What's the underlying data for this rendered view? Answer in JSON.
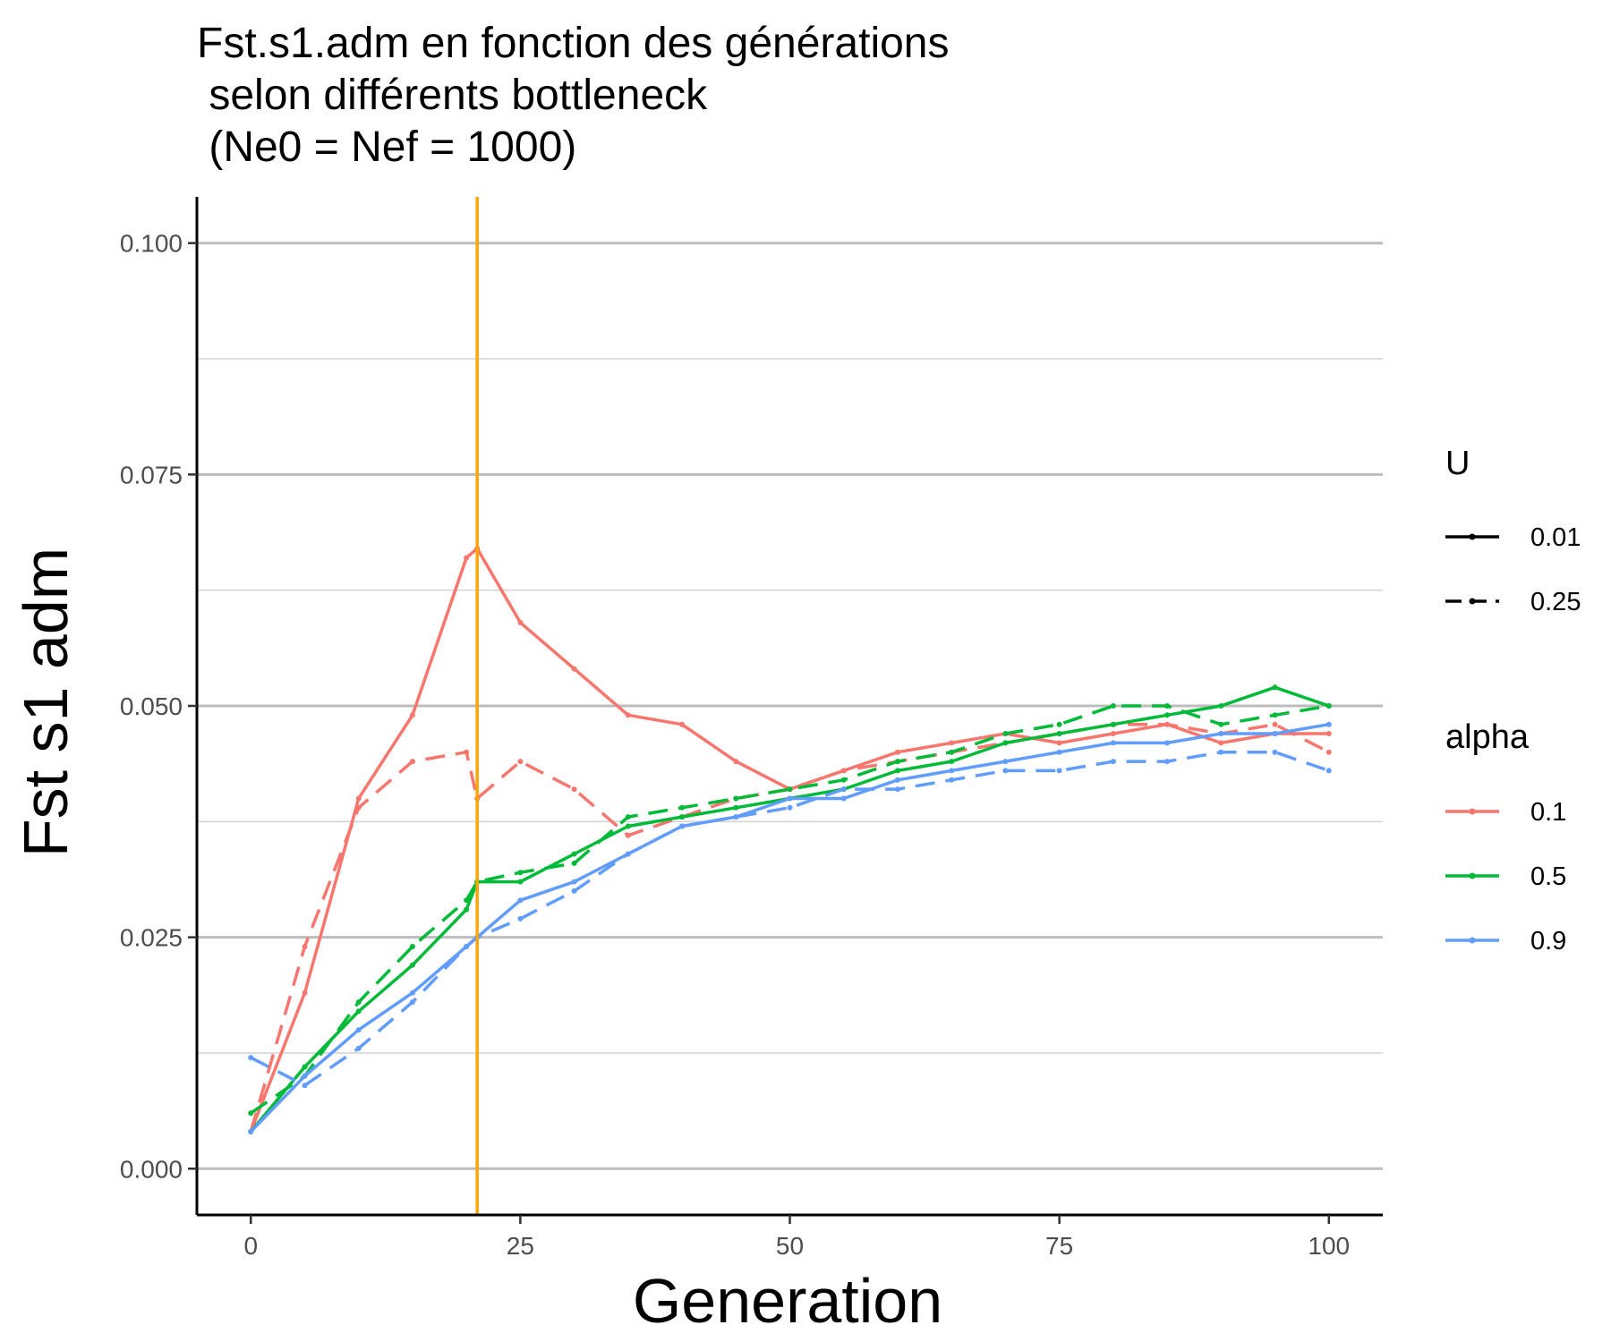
{
  "chart_data": {
    "type": "line",
    "title_lines": [
      "Fst.s1.adm en fonction des générations",
      " selon différents bottleneck",
      " (Ne0 = Nef = 1000)"
    ],
    "xlabel": "Generation",
    "ylabel": "Fst s1 adm",
    "xlim": [
      -5,
      105
    ],
    "ylim": [
      -0.005,
      0.105
    ],
    "x_ticks": [
      0,
      25,
      50,
      75,
      100
    ],
    "x_tick_labels": [
      "0",
      "25",
      "50",
      "75",
      "100"
    ],
    "y_ticks": [
      0.0,
      0.025,
      0.05,
      0.075,
      0.1
    ],
    "y_tick_labels": [
      "0.000",
      "0.025",
      "0.050",
      "0.075",
      "0.100"
    ],
    "y_minor_ticks": [
      0.0125,
      0.0375,
      0.0625,
      0.0875
    ],
    "grid": "horizontal",
    "vline": {
      "x": 21,
      "color": "#FFA500"
    },
    "legend": {
      "placement": "right",
      "linetype": {
        "title": "U",
        "entries": [
          "0.01",
          "0.25"
        ]
      },
      "color": {
        "title": "alpha",
        "entries": [
          "0.1",
          "0.5",
          "0.9"
        ],
        "colors": [
          "#F8766D",
          "#00BA38",
          "#619CFF"
        ]
      }
    },
    "x": [
      0,
      5,
      10,
      15,
      20,
      21,
      25,
      30,
      35,
      40,
      45,
      50,
      55,
      60,
      65,
      70,
      75,
      80,
      85,
      90,
      95,
      100
    ],
    "series": [
      {
        "alpha": "0.1",
        "U": "0.01",
        "color": "#F8766D",
        "dash": "solid",
        "values": [
          0.004,
          0.019,
          0.04,
          0.049,
          0.066,
          0.067,
          0.059,
          0.054,
          0.049,
          0.048,
          0.044,
          0.041,
          0.043,
          0.045,
          0.046,
          0.047,
          0.046,
          0.047,
          0.048,
          0.046,
          0.047,
          0.047
        ]
      },
      {
        "alpha": "0.1",
        "U": "0.25",
        "color": "#F8766D",
        "dash": "dashed",
        "values": [
          0.004,
          0.024,
          0.039,
          0.044,
          0.045,
          0.04,
          0.044,
          0.041,
          0.036,
          0.038,
          0.04,
          0.041,
          0.043,
          0.044,
          0.045,
          0.046,
          0.047,
          0.048,
          0.048,
          0.047,
          0.048,
          0.045
        ]
      },
      {
        "alpha": "0.5",
        "U": "0.01",
        "color": "#00BA38",
        "dash": "solid",
        "values": [
          0.004,
          0.011,
          0.017,
          0.022,
          0.028,
          0.031,
          0.031,
          0.034,
          0.037,
          0.038,
          0.039,
          0.04,
          0.041,
          0.043,
          0.044,
          0.046,
          0.047,
          0.048,
          0.049,
          0.05,
          0.052,
          0.05
        ]
      },
      {
        "alpha": "0.5",
        "U": "0.25",
        "color": "#00BA38",
        "dash": "dashed",
        "values": [
          0.006,
          0.01,
          0.018,
          0.024,
          0.029,
          0.031,
          0.032,
          0.033,
          0.038,
          0.039,
          0.04,
          0.041,
          0.042,
          0.044,
          0.045,
          0.047,
          0.048,
          0.05,
          0.05,
          0.048,
          0.049,
          0.05
        ]
      },
      {
        "alpha": "0.9",
        "U": "0.01",
        "color": "#619CFF",
        "dash": "solid",
        "values": [
          0.004,
          0.01,
          0.015,
          0.019,
          0.024,
          0.025,
          0.029,
          0.031,
          0.034,
          0.037,
          0.038,
          0.04,
          0.04,
          0.042,
          0.043,
          0.044,
          0.045,
          0.046,
          0.046,
          0.047,
          0.047,
          0.048
        ]
      },
      {
        "alpha": "0.9",
        "U": "0.25",
        "color": "#619CFF",
        "dash": "dashed",
        "values": [
          0.012,
          0.009,
          0.013,
          0.018,
          0.024,
          0.025,
          0.027,
          0.03,
          0.034,
          0.037,
          0.038,
          0.039,
          0.041,
          0.041,
          0.042,
          0.043,
          0.043,
          0.044,
          0.044,
          0.045,
          0.045,
          0.043
        ]
      }
    ]
  }
}
